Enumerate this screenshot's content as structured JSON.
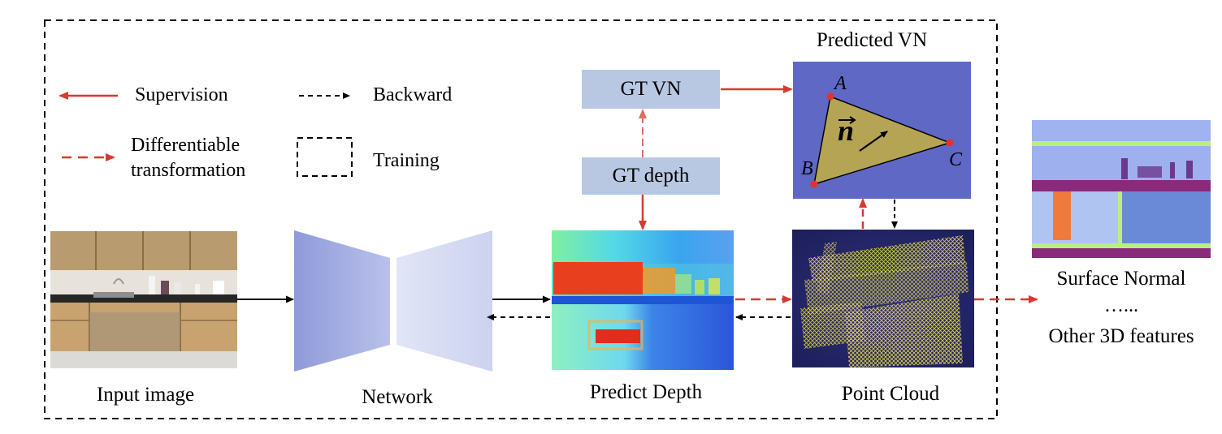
{
  "legend": {
    "supervision": "Supervision",
    "backward": "Backward",
    "differentiable_line1": "Differentiable",
    "differentiable_line2": "transformation",
    "training": "Training"
  },
  "nodes": {
    "input_image": "Input image",
    "network": "Network",
    "predict_depth": "Predict Depth",
    "point_cloud": "Point Cloud",
    "gt_vn": "GT VN",
    "gt_depth": "GT depth",
    "predicted_vn": "Predicted VN",
    "surface_normal": "Surface Normal",
    "ellipsis": "…...",
    "other_3d": "Other 3D features"
  },
  "triangle": {
    "vertex_a": "A",
    "vertex_b": "B",
    "vertex_c": "C",
    "normal_symbol": "n"
  },
  "colors": {
    "supervision": "#d63a2f",
    "backward": "#000000",
    "gt_box": "#b9c8e2",
    "vn_background": "#5f68c4",
    "triangle_fill": "#b6a455",
    "network_left": "#9aa5e0",
    "network_right": "#d7dcf3"
  }
}
